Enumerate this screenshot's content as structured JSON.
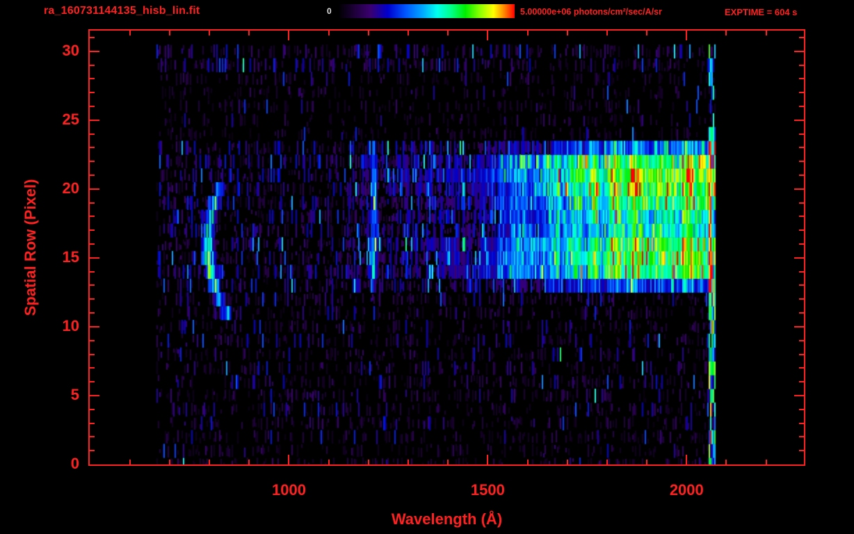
{
  "header": {
    "colorbar_min": "0",
    "colorbar_max": "5.00000e+06 photons/cm²/sec/A/sr",
    "exptime": "EXPTIME = 604 s"
  },
  "colors": {
    "axis_red": "#ff2020",
    "background": "#000000",
    "colorbar_min_label": "#e0e0e0"
  },
  "chart_data": {
    "type": "heatmap",
    "title": "ra_160731144135_hisb_lin.fit",
    "xlabel": "Wavelength (Å)",
    "ylabel": "Spatial Row (Pixel)",
    "x_ticks": [
      1000,
      1500,
      2000
    ],
    "x_minor_step": 100,
    "y_ticks": [
      0,
      5,
      10,
      15,
      20,
      25,
      30
    ],
    "y_minor_step": 1,
    "x_range": [
      499,
      2295
    ],
    "y_range": [
      0,
      31.5
    ],
    "data_x_range": [
      668,
      2072
    ],
    "rows": 31,
    "grid": false,
    "colorbar": {
      "min": 0,
      "max": 5000000,
      "units": "photons/cm²/sec/A/sr"
    },
    "colormap": [
      {
        "v": 0.0,
        "c": "#000000"
      },
      {
        "v": 0.08,
        "c": "#1a0033"
      },
      {
        "v": 0.18,
        "c": "#3a006f"
      },
      {
        "v": 0.28,
        "c": "#0000cc"
      },
      {
        "v": 0.38,
        "c": "#0055ff"
      },
      {
        "v": 0.48,
        "c": "#00aaff"
      },
      {
        "v": 0.56,
        "c": "#00ffee"
      },
      {
        "v": 0.64,
        "c": "#00ff88"
      },
      {
        "v": 0.72,
        "c": "#00ee00"
      },
      {
        "v": 0.8,
        "c": "#88ff00"
      },
      {
        "v": 0.88,
        "c": "#ffff00"
      },
      {
        "v": 0.94,
        "c": "#ff8800"
      },
      {
        "v": 1.0,
        "c": "#ff0000"
      }
    ],
    "features": [
      {
        "name": "airglow-arc",
        "type": "arc",
        "x_vertex": 793,
        "curvature": 1.9,
        "row_vertex": 16,
        "row_min": 10.8,
        "row_max": 20.2,
        "sigma_x": 14,
        "amplitude": 0.62
      },
      {
        "name": "lyman-alpha-line",
        "type": "vline",
        "x": 1212,
        "sigma_x": 7,
        "row_min": 12.5,
        "row_max": 23.5,
        "amplitude": 0.42
      },
      {
        "name": "continuum-band",
        "type": "band",
        "x_min": 1140,
        "x_max": 2062,
        "row_min": 13,
        "row_max": 23.5,
        "ramp_x": [
          1140,
          1450,
          1650,
          1800,
          2060
        ],
        "ramp_amp": [
          0.06,
          0.16,
          0.38,
          0.6,
          0.68
        ]
      },
      {
        "name": "detector-edge",
        "type": "edge",
        "x": 2062,
        "sigma_x": 5,
        "row_min": 0,
        "row_max": 30.5,
        "amplitude": 0.6,
        "spike_prob": 0.05
      }
    ],
    "noise": {
      "base_amplitude": 0.16,
      "row_boost_rows": [
        13,
        23.5
      ],
      "row_boost": 1.5,
      "seed": 1234567
    }
  }
}
